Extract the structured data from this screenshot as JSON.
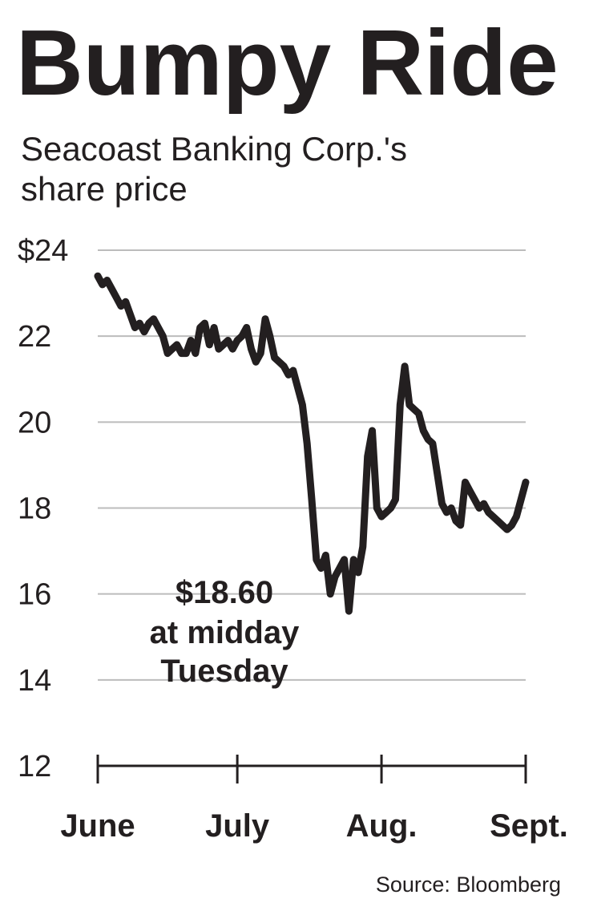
{
  "chart_data": {
    "type": "line",
    "title": "Bumpy Ride",
    "subtitle_lines": [
      "Seacoast Banking Corp.'s",
      "share price"
    ],
    "xlabel": "",
    "ylabel": "",
    "ylim": [
      12,
      24
    ],
    "yticks": [
      24,
      22,
      20,
      18,
      16,
      14,
      12
    ],
    "ytick_labels": [
      "$24",
      "22",
      "20",
      "18",
      "16",
      "14",
      "12"
    ],
    "x_domain": [
      0,
      92
    ],
    "xticks": [
      {
        "label": "June",
        "day": 0
      },
      {
        "label": "July",
        "day": 30
      },
      {
        "label": "Aug.",
        "day": 61
      },
      {
        "label": "Sept.",
        "day": 92
      }
    ],
    "grid": true,
    "annotation_lines": [
      "$18.60",
      "at midday",
      "Tuesday"
    ],
    "source": "Source: Bloomberg",
    "colors": {
      "line": "#231f20",
      "grid": "#bcbcbc",
      "text": "#231f20"
    },
    "x": [
      0,
      1,
      2,
      3,
      4,
      5,
      6,
      7,
      8,
      9,
      10,
      11,
      12,
      13,
      14,
      15,
      16,
      17,
      18,
      19,
      20,
      21,
      22,
      23,
      24,
      25,
      26,
      27,
      28,
      29,
      30,
      31,
      32,
      33,
      34,
      35,
      36,
      37,
      38,
      39,
      40,
      41,
      42,
      43,
      44,
      45,
      46,
      47,
      48,
      49,
      50,
      51,
      52,
      53,
      54,
      55,
      56,
      57,
      58,
      59,
      60,
      61,
      62,
      63,
      64,
      65,
      66,
      67,
      68,
      69,
      70,
      71,
      72,
      73,
      74,
      75,
      76,
      77,
      78,
      79,
      80,
      81,
      82,
      83,
      84,
      85,
      86,
      87,
      88,
      89,
      90,
      91,
      92
    ],
    "values": [
      23.4,
      23.2,
      23.3,
      23.1,
      22.9,
      22.7,
      22.8,
      22.5,
      22.2,
      22.3,
      22.1,
      22.3,
      22.4,
      22.2,
      22.0,
      21.6,
      21.7,
      21.8,
      21.6,
      21.6,
      21.9,
      21.6,
      22.2,
      22.3,
      21.8,
      22.2,
      21.7,
      21.8,
      21.9,
      21.7,
      21.9,
      22.0,
      22.2,
      21.7,
      21.4,
      21.6,
      22.4,
      22.0,
      21.5,
      21.4,
      21.3,
      21.1,
      21.2,
      20.8,
      20.4,
      19.5,
      18.2,
      16.8,
      16.6,
      16.9,
      16.0,
      16.4,
      16.6,
      16.8,
      15.6,
      16.8,
      16.5,
      17.1,
      19.2,
      19.8,
      18.0,
      17.8,
      17.9,
      18.0,
      18.2,
      20.4,
      21.3,
      20.4,
      20.3,
      20.2,
      19.8,
      19.6,
      19.5,
      18.8,
      18.1,
      17.9,
      18.0,
      17.7,
      17.6,
      18.6,
      18.4,
      18.2,
      18.0,
      18.1,
      17.9,
      17.8,
      17.7,
      17.6,
      17.5,
      17.6,
      17.8,
      18.2,
      18.6
    ]
  }
}
